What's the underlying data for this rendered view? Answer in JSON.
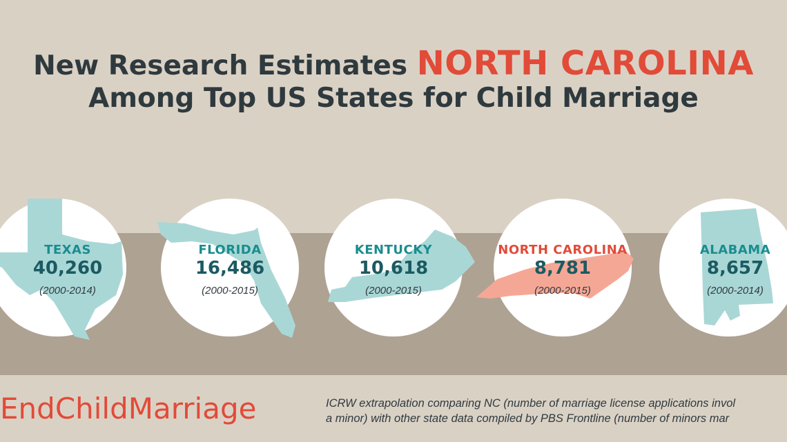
{
  "title": {
    "line1_prefix": "New Research Estimates ",
    "line1_highlight": "NORTH CAROLINA",
    "line2": "Among Top US States for Child Marriage"
  },
  "states": [
    {
      "name": "TEXAS",
      "value": "40,260",
      "years": "(2000-2014)"
    },
    {
      "name": "FLORIDA",
      "value": "16,486",
      "years": "(2000-2015)"
    },
    {
      "name": "KENTUCKY",
      "value": "10,618",
      "years": "(2000-2015)"
    },
    {
      "name": "NORTH CAROLINA",
      "value": "8,781",
      "years": "(2000-2015)"
    },
    {
      "name": "ALABAMA",
      "value": "8,657",
      "years": "(2000-2014)"
    }
  ],
  "footer": {
    "hashtag": "EndChildMarriage",
    "source_line1": "ICRW extrapolation comparing NC (number of marriage license applications invol",
    "source_line2": "a minor) with other state data compiled by PBS Frontline (number of minors mar"
  },
  "colors": {
    "background": "#dad1c5",
    "band": "#aea293",
    "title_dark": "#2f3a3e",
    "highlight_red": "#e14b38",
    "state_teal": "#a9d7d6",
    "state_salmon": "#f5a795",
    "label_teal": "#1a8d8f",
    "value_teal": "#1b5a62"
  }
}
